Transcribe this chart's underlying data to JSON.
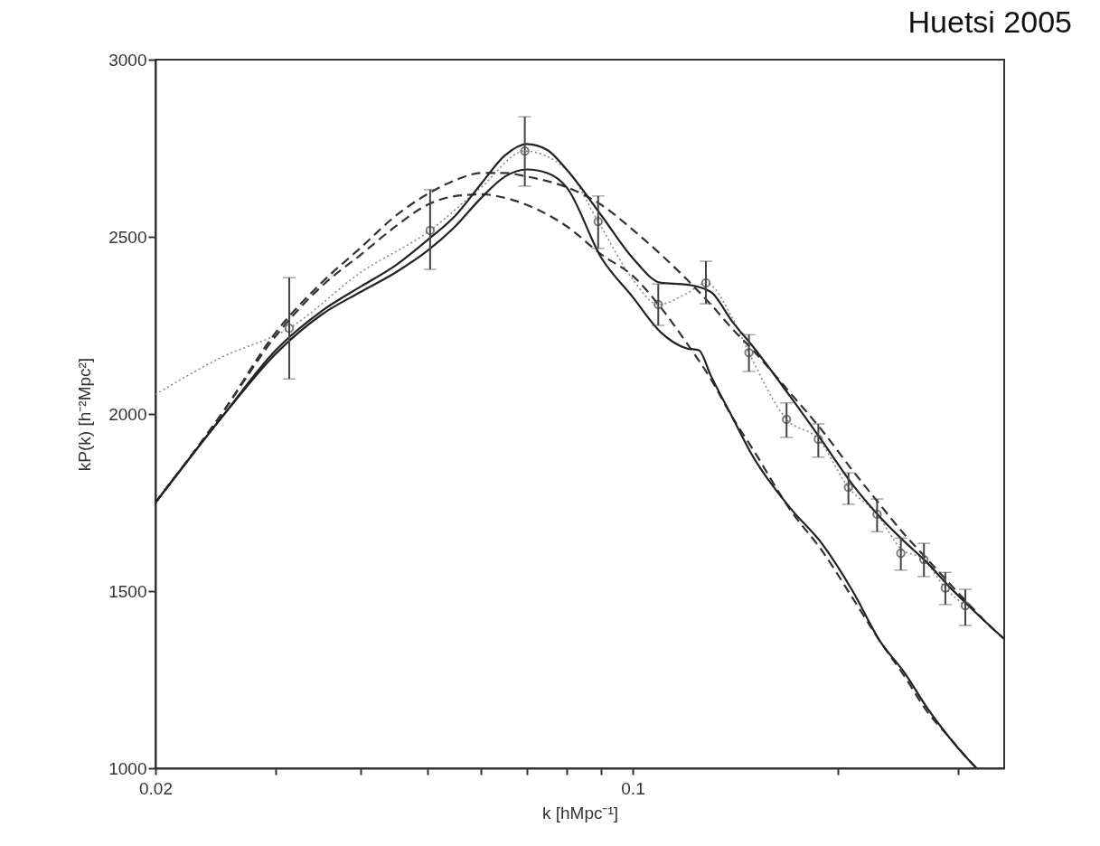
{
  "chart_data": {
    "type": "line",
    "title": "Huetsi 2005",
    "xlabel": "k [hMpc⁻¹]",
    "ylabel": "kP(k) [h⁻²Mpc²]",
    "log": "x",
    "grid": false,
    "xlim": [
      0.02,
      0.35
    ],
    "xticks": [
      0.02,
      {
        "value": 0.03,
        "label": null
      },
      {
        "value": 0.04,
        "label": null
      },
      {
        "value": 0.05,
        "label": null
      },
      {
        "value": 0.06,
        "label": null
      },
      {
        "value": 0.07,
        "label": null
      },
      {
        "value": 0.08,
        "label": null
      },
      {
        "value": 0.09,
        "label": null
      },
      0.1,
      {
        "value": 0.2,
        "label": null
      },
      {
        "value": 0.3,
        "label": null
      }
    ],
    "ylim": [
      1000,
      3000
    ],
    "yticks": [
      1000,
      1500,
      2000,
      2500,
      3000
    ],
    "series": [
      {
        "type": "line",
        "line_style": "dotted",
        "color": "#8a8a8a",
        "x": [
          0.02,
          0.025,
          0.0314,
          0.04,
          0.0505,
          0.06,
          0.0695,
          0.08,
          0.089,
          0.1,
          0.109,
          0.12,
          0.128,
          0.14,
          0.148,
          0.168,
          0.187,
          0.207,
          0.228,
          0.247,
          0.267,
          0.287,
          0.307
        ],
        "values": [
          2055,
          2160,
          2242,
          2400,
          2518,
          2640,
          2742,
          2690,
          2543,
          2380,
          2309,
          2340,
          2370,
          2270,
          2173,
          1985,
          1929,
          1793,
          1717,
          1620,
          1589,
          1509,
          1459
        ]
      },
      {
        "type": "line",
        "line_style": "dashed",
        "color": "#333333",
        "x": [
          0.02,
          0.025,
          0.03,
          0.035,
          0.04,
          0.045,
          0.05,
          0.055,
          0.06,
          0.065,
          0.07,
          0.08,
          0.09,
          0.1,
          0.11,
          0.12,
          0.13,
          0.14,
          0.15,
          0.17,
          0.19,
          0.21,
          0.23,
          0.25,
          0.27,
          0.29,
          0.31,
          0.33,
          0.35
        ],
        "values": [
          1750,
          2000,
          2230,
          2370,
          2470,
          2560,
          2620,
          2660,
          2680,
          2680,
          2670,
          2640,
          2590,
          2520,
          2450,
          2380,
          2310,
          2240,
          2180,
          2060,
          1950,
          1840,
          1745,
          1660,
          1590,
          1525,
          1465,
          1410,
          1365
        ]
      },
      {
        "type": "line",
        "line_style": "dashed",
        "color": "#333333",
        "x": [
          0.02,
          0.025,
          0.03,
          0.035,
          0.04,
          0.045,
          0.05,
          0.055,
          0.06,
          0.065,
          0.07,
          0.08,
          0.09,
          0.1,
          0.11,
          0.12,
          0.13,
          0.14,
          0.15,
          0.17,
          0.19,
          0.21,
          0.23,
          0.25,
          0.27,
          0.29,
          0.31,
          0.319
        ],
        "values": [
          1750,
          2000,
          2220,
          2360,
          2450,
          2530,
          2590,
          2615,
          2620,
          2610,
          2590,
          2530,
          2450,
          2390,
          2300,
          2200,
          2100,
          1990,
          1900,
          1730,
          1610,
          1480,
          1360,
          1260,
          1160,
          1090,
          1025,
          1000
        ]
      },
      {
        "type": "line",
        "line_style": "solid",
        "color": "#222222",
        "x": [
          0.02,
          0.025,
          0.03,
          0.035,
          0.04,
          0.045,
          0.05,
          0.055,
          0.06,
          0.065,
          0.07,
          0.075,
          0.08,
          0.09,
          0.1,
          0.11,
          0.12,
          0.13,
          0.14,
          0.15,
          0.17,
          0.19,
          0.21,
          0.23,
          0.25,
          0.27,
          0.29,
          0.31,
          0.33,
          0.35
        ],
        "values": [
          1750,
          1990,
          2180,
          2290,
          2360,
          2420,
          2490,
          2560,
          2650,
          2730,
          2762,
          2745,
          2690,
          2560,
          2440,
          2370,
          2365,
          2345,
          2260,
          2190,
          2050,
          1920,
          1800,
          1710,
          1640,
          1580,
          1515,
          1460,
          1410,
          1365
        ]
      },
      {
        "type": "line",
        "line_style": "solid",
        "color": "#222222",
        "x": [
          0.02,
          0.025,
          0.03,
          0.035,
          0.04,
          0.045,
          0.05,
          0.055,
          0.06,
          0.065,
          0.07,
          0.075,
          0.08,
          0.09,
          0.1,
          0.11,
          0.12,
          0.125,
          0.13,
          0.14,
          0.15,
          0.17,
          0.19,
          0.21,
          0.23,
          0.25,
          0.27,
          0.29,
          0.31,
          0.319
        ],
        "values": [
          1750,
          1990,
          2170,
          2280,
          2345,
          2400,
          2460,
          2530,
          2610,
          2670,
          2690,
          2680,
          2640,
          2440,
          2330,
          2230,
          2185,
          2180,
          2110,
          1990,
          1880,
          1735,
          1630,
          1500,
          1360,
          1270,
          1170,
          1090,
          1025,
          1000
        ]
      },
      {
        "type": "scatter",
        "marker": "circle",
        "color": "#444444",
        "x": [
          0.0314,
          0.0505,
          0.0695,
          0.089,
          0.109,
          0.128,
          0.148,
          0.168,
          0.187,
          0.207,
          0.228,
          0.247,
          0.267,
          0.287,
          0.307
        ],
        "values": [
          2242,
          2518,
          2742,
          2543,
          2309,
          2370,
          2173,
          1985,
          1929,
          1793,
          1717,
          1607,
          1589,
          1509,
          1459
        ],
        "errors": [
          [
            2099,
            2385
          ],
          [
            2408,
            2633
          ],
          [
            2643,
            2839
          ],
          [
            2467,
            2615
          ],
          [
            2250,
            2367
          ],
          [
            2311,
            2431
          ],
          [
            2120,
            2224
          ],
          [
            1934,
            2031
          ],
          [
            1878,
            1972
          ],
          [
            1745,
            1834
          ],
          [
            1668,
            1760
          ],
          [
            1559,
            1650
          ],
          [
            1541,
            1635
          ],
          [
            1462,
            1553
          ],
          [
            1403,
            1505
          ]
        ]
      }
    ]
  }
}
